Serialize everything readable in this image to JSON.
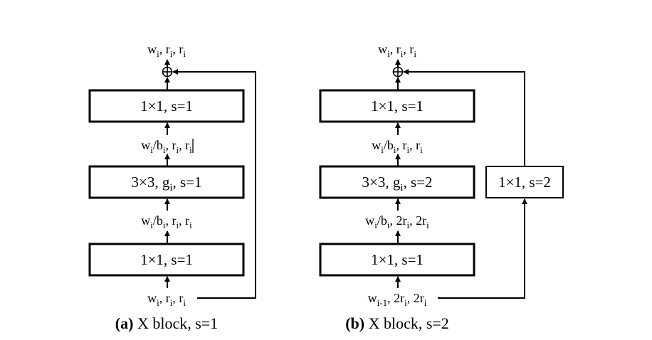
{
  "panel_a": {
    "top": {
      "a": "w",
      "as": "i",
      "b": ", r",
      "bs": "i",
      "c": ", r",
      "cs": "i"
    },
    "box1": "1×1, s=1",
    "mid1": {
      "a": "w",
      "as": "i",
      "b": "/b",
      "bs": "i",
      "c": ", r",
      "cs": "i",
      "d": ", r",
      "ds": "i"
    },
    "box2": {
      "pre": "3×3, g",
      "sub": "i",
      "post": ", s=1"
    },
    "mid2": {
      "a": "w",
      "as": "i",
      "b": "/b",
      "bs": "i",
      "c": ", r",
      "cs": "i",
      "d": ", r",
      "ds": "i"
    },
    "box3": "1×1, s=1",
    "bottom": {
      "a": "w",
      "as": "i",
      "b": ", r",
      "bs": "i",
      "c": ", r",
      "cs": "i"
    },
    "caption_bold": "(a)",
    "caption_rest": " X block, s=1"
  },
  "panel_b": {
    "top": {
      "a": "w",
      "as": "i",
      "b": ", r",
      "bs": "i",
      "c": ", r",
      "cs": "i"
    },
    "box1": "1×1, s=1",
    "mid1": {
      "a": "w",
      "as": "i",
      "b": "/b",
      "bs": "i",
      "c": ", r",
      "cs": "i",
      "d": ", r",
      "ds": "i"
    },
    "box2": {
      "pre": "3×3, g",
      "sub": "i",
      "post": ", s=2"
    },
    "mid2": {
      "a": "w",
      "as": "i",
      "b": "/b",
      "bs": "i",
      "c": ", 2r",
      "cs": "i",
      "d": ", 2r",
      "ds": "i"
    },
    "box3": "1×1, s=1",
    "shortcut": "1×1, s=2",
    "bottom": {
      "a": "w",
      "as": "i-1",
      "b": ", 2r",
      "bs": "i",
      "c": ", 2r",
      "cs": "i"
    },
    "caption_bold": "(b)",
    "caption_rest": " X block, s=2"
  }
}
